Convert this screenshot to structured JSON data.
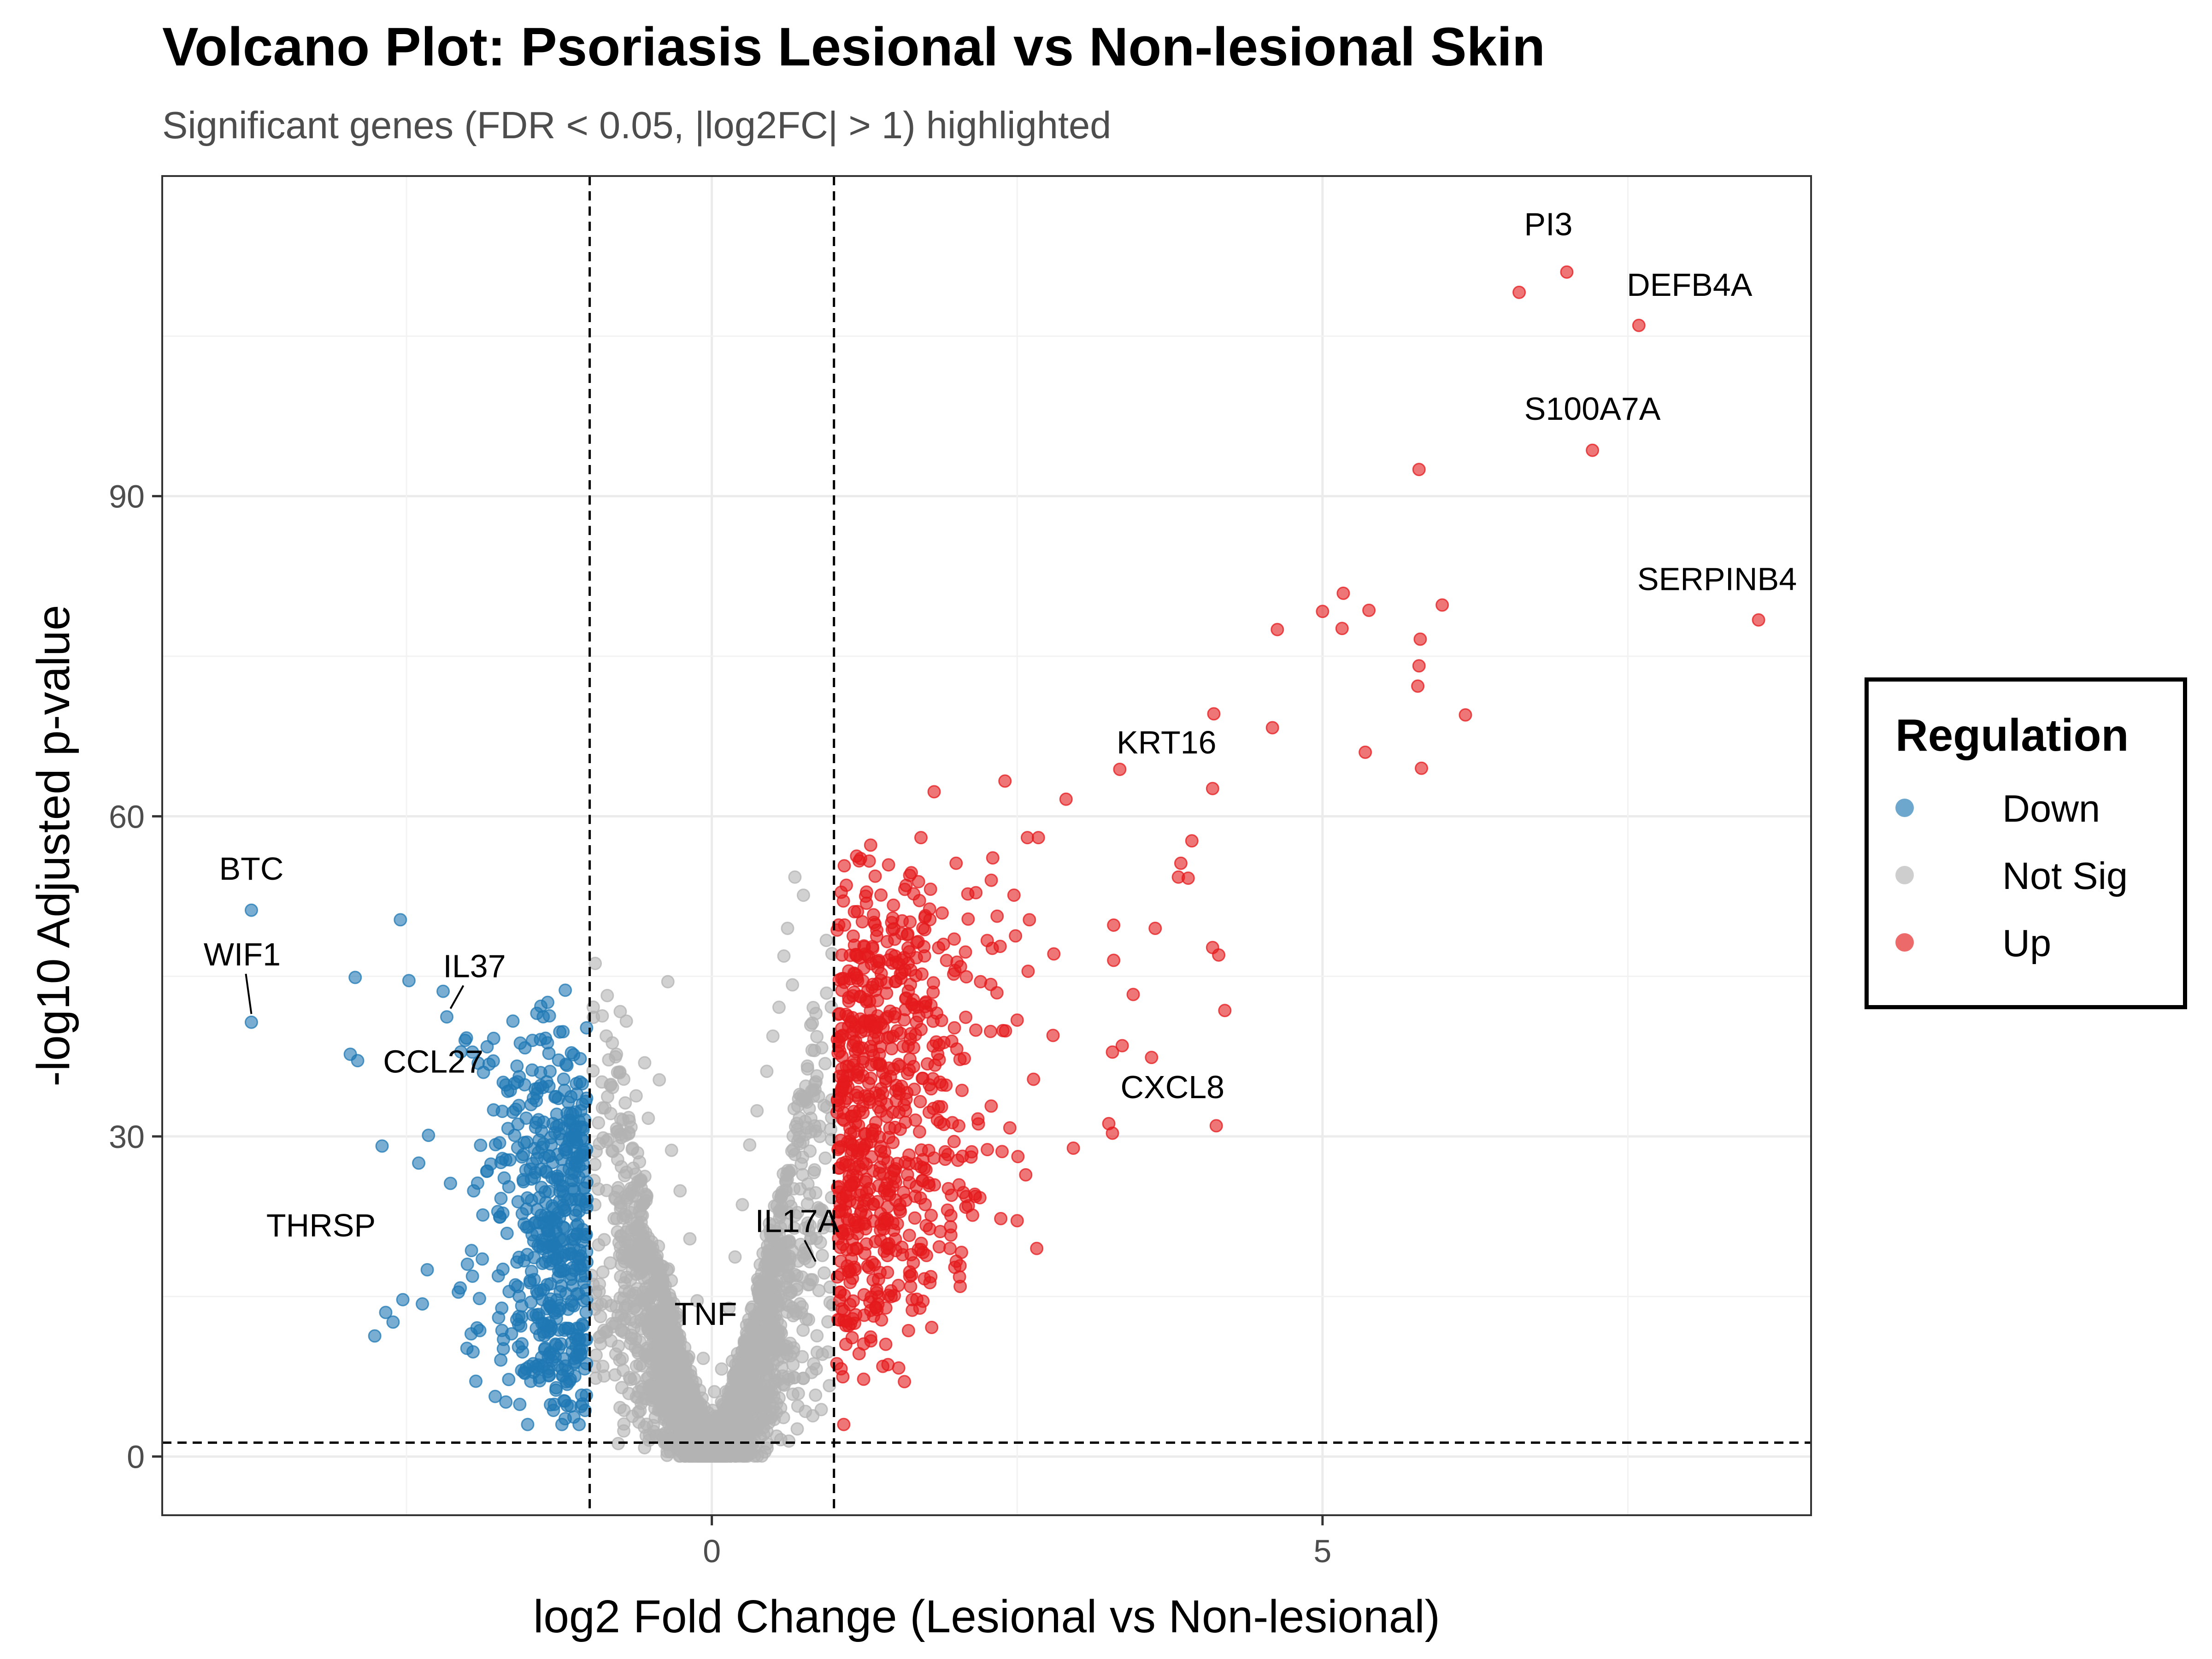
{
  "chart_data": {
    "type": "scatter",
    "title": "Volcano Plot: Psoriasis Lesional vs Non-lesional Skin",
    "subtitle": "Significant genes (FDR < 0.05, |log2FC| > 1) highlighted",
    "xlabel": "log2 Fold Change (Lesional vs Non-lesional)",
    "ylabel": "-log10 Adjusted p-value",
    "xlim": [
      -4.5,
      9.0
    ],
    "ylim": [
      -5.5,
      120
    ],
    "x_ticks": [
      0,
      5
    ],
    "y_ticks": [
      0,
      30,
      60,
      90
    ],
    "thresholds": {
      "log2fc": [
        -1,
        1
      ],
      "neg_log10_fdr": 1.3
    },
    "grid": true,
    "legend": {
      "title": "Regulation",
      "position": "right",
      "entries": [
        {
          "label": "Down",
          "color": "#1f78b4"
        },
        {
          "label": "Not Sig",
          "color": "#b3b3b3"
        },
        {
          "label": "Up",
          "color": "#e41a1c"
        }
      ]
    },
    "series": [
      {
        "name": "Down",
        "color": "#1f78b4",
        "points": [
          [
            -3.77,
            51.2
          ],
          [
            -3.77,
            40.7
          ],
          [
            -2.55,
            50.3
          ],
          [
            -2.48,
            44.6
          ],
          [
            -2.92,
            44.9
          ],
          [
            -2.17,
            41.2
          ],
          [
            -2.2,
            43.6
          ],
          [
            -2.02,
            39.0
          ],
          [
            -1.96,
            37.9
          ],
          [
            -1.87,
            36.0
          ],
          [
            -1.84,
            38.4
          ],
          [
            -2.96,
            37.7
          ],
          [
            -2.9,
            37.1
          ],
          [
            -2.7,
            29.1
          ],
          [
            -2.32,
            30.1
          ],
          [
            -2.4,
            27.5
          ],
          [
            -2.14,
            25.6
          ],
          [
            -1.95,
            24.9
          ],
          [
            -2.33,
            17.5
          ],
          [
            -2.37,
            14.3
          ],
          [
            -2.53,
            14.7
          ],
          [
            -2.67,
            13.5
          ],
          [
            -2.76,
            11.3
          ],
          [
            -2.61,
            12.6
          ],
          [
            -1.9,
            11.8
          ],
          [
            -1.96,
            16.9
          ],
          [
            -2.06,
            15.8
          ],
          [
            -1.72,
            13.9
          ],
          [
            -1.64,
            11.5
          ],
          [
            -1.55,
            9.8
          ],
          [
            -1.46,
            7.9
          ],
          [
            -1.41,
            7.1
          ],
          [
            -1.37,
            8.6
          ],
          [
            -1.2,
            43.7
          ],
          [
            -1.4,
            42.2
          ],
          [
            -1.33,
            41.3
          ],
          [
            -1.53,
            38.3
          ],
          [
            -1.65,
            34.3
          ],
          [
            -1.58,
            32.9
          ],
          [
            -1.3,
            31.2
          ],
          [
            -1.42,
            28.5
          ],
          [
            -1.7,
            26.1
          ],
          [
            -1.26,
            22.8
          ],
          [
            -1.5,
            21.5
          ],
          [
            -1.35,
            19.6
          ],
          [
            -1.22,
            17.4
          ],
          [
            -1.18,
            24.1
          ],
          [
            -1.12,
            27.3
          ],
          [
            -1.08,
            35.1
          ],
          [
            -1.05,
            29.6
          ],
          [
            -1.03,
            15.6
          ],
          [
            -1.06,
            12.4
          ],
          [
            -1.1,
            9.3
          ],
          [
            -1.07,
            4.7
          ]
        ]
      },
      {
        "name": "Up",
        "color": "#e41a1c",
        "points": [
          [
            6.61,
            109.1
          ],
          [
            7.0,
            111.0
          ],
          [
            7.59,
            106.0
          ],
          [
            7.21,
            94.3
          ],
          [
            5.79,
            92.5
          ],
          [
            8.57,
            78.4
          ],
          [
            5.0,
            79.2
          ],
          [
            5.17,
            80.9
          ],
          [
            5.38,
            79.3
          ],
          [
            5.16,
            77.6
          ],
          [
            4.63,
            77.5
          ],
          [
            5.98,
            79.8
          ],
          [
            5.8,
            76.6
          ],
          [
            5.79,
            74.1
          ],
          [
            5.78,
            72.2
          ],
          [
            6.17,
            69.5
          ],
          [
            4.59,
            68.3
          ],
          [
            4.11,
            69.6
          ],
          [
            5.35,
            66.0
          ],
          [
            5.81,
            64.5
          ],
          [
            3.34,
            64.4
          ],
          [
            4.1,
            62.6
          ],
          [
            2.9,
            61.6
          ],
          [
            2.4,
            63.3
          ],
          [
            1.82,
            62.3
          ],
          [
            3.93,
            57.7
          ],
          [
            3.84,
            55.6
          ],
          [
            3.82,
            54.3
          ],
          [
            3.9,
            54.2
          ],
          [
            4.1,
            47.7
          ],
          [
            4.15,
            47.0
          ],
          [
            4.2,
            41.8
          ],
          [
            3.63,
            49.5
          ],
          [
            3.29,
            49.8
          ],
          [
            3.29,
            46.5
          ],
          [
            3.45,
            43.3
          ],
          [
            3.36,
            38.5
          ],
          [
            3.28,
            37.9
          ],
          [
            3.6,
            37.4
          ],
          [
            4.13,
            31.0
          ],
          [
            3.25,
            31.2
          ],
          [
            3.28,
            30.3
          ],
          [
            2.96,
            28.9
          ],
          [
            2.66,
            19.5
          ],
          [
            2.57,
            26.4
          ],
          [
            2.5,
            22.1
          ],
          [
            2.44,
            30.8
          ],
          [
            2.1,
            23.5
          ],
          [
            1.95,
            19.5
          ],
          [
            1.62,
            17.3
          ],
          [
            1.8,
            12.1
          ],
          [
            1.61,
            11.8
          ],
          [
            1.53,
            8.3
          ],
          [
            1.3,
            11.2
          ],
          [
            1.08,
            3.0
          ],
          [
            1.05,
            15.4
          ],
          [
            1.1,
            24.4
          ],
          [
            1.2,
            33.6
          ],
          [
            1.35,
            40.2
          ],
          [
            1.5,
            46.9
          ],
          [
            1.7,
            52.1
          ],
          [
            2.0,
            55.6
          ],
          [
            2.3,
            56.1
          ],
          [
            2.6,
            50.3
          ],
          [
            2.8,
            47.1
          ],
          [
            1.25,
            29.1
          ],
          [
            1.45,
            36.4
          ],
          [
            1.65,
            42.8
          ],
          [
            1.9,
            38.8
          ],
          [
            2.2,
            44.5
          ],
          [
            2.5,
            40.9
          ],
          [
            1.15,
            20.3
          ]
        ]
      },
      {
        "name": "Not Sig",
        "color": "#b3b3b3",
        "points": [
          [
            0.68,
            54.3
          ],
          [
            0.75,
            52.6
          ],
          [
            0.62,
            49.5
          ],
          [
            0.59,
            46.9
          ],
          [
            -0.36,
            44.5
          ],
          [
            0.66,
            44.2
          ],
          [
            0.55,
            42.1
          ],
          [
            -0.75,
            41.7
          ],
          [
            -0.7,
            40.8
          ],
          [
            -0.55,
            36.9
          ],
          [
            -0.43,
            35.3
          ],
          [
            -0.62,
            33.8
          ],
          [
            -0.52,
            31.7
          ],
          [
            -0.33,
            28.7
          ],
          [
            -0.26,
            24.9
          ],
          [
            -0.18,
            20.4
          ],
          [
            -0.12,
            14.6
          ],
          [
            -0.07,
            9.2
          ],
          [
            -0.03,
            4.1
          ],
          [
            0.0,
            0.5
          ],
          [
            0.03,
            3.5
          ],
          [
            0.08,
            8.2
          ],
          [
            0.14,
            13.9
          ],
          [
            0.19,
            18.7
          ],
          [
            0.25,
            23.6
          ],
          [
            0.31,
            29.2
          ],
          [
            0.37,
            32.4
          ],
          [
            0.45,
            36.1
          ],
          [
            0.5,
            39.4
          ],
          [
            -0.9,
            35.1
          ],
          [
            -0.85,
            29.7
          ],
          [
            -0.8,
            22.3
          ],
          [
            -0.95,
            15.4
          ],
          [
            0.9,
            38.3
          ],
          [
            0.85,
            30.5
          ],
          [
            0.8,
            24.6
          ],
          [
            0.92,
            17.2
          ],
          [
            0.95,
            9.8
          ],
          [
            -0.6,
            6.1
          ],
          [
            0.45,
            5.4
          ],
          [
            0.2,
            2.6
          ],
          [
            -0.25,
            2.1
          ]
        ]
      }
    ],
    "annotations": [
      {
        "label": "PI3",
        "x": 7.0,
        "y": 111.0
      },
      {
        "label": "DEFB4A",
        "x": 7.59,
        "y": 106.0
      },
      {
        "label": "S100A7A",
        "x": 7.21,
        "y": 94.3
      },
      {
        "label": "SERPINB4",
        "x": 8.57,
        "y": 78.4
      },
      {
        "label": "KRT16",
        "x": 4.1,
        "y": 62.6
      },
      {
        "label": "CXCL8",
        "x": 4.13,
        "y": 31.0
      },
      {
        "label": "IL17A",
        "x": 0.85,
        "y": 17.5
      },
      {
        "label": "TNF",
        "x": -0.02,
        "y": 15.8
      },
      {
        "label": "BTC",
        "x": -3.77,
        "y": 51.2
      },
      {
        "label": "WIF1",
        "x": -3.77,
        "y": 40.7
      },
      {
        "label": "IL37",
        "x": -2.17,
        "y": 41.2
      },
      {
        "label": "CCL27",
        "x": -2.96,
        "y": 37.7
      },
      {
        "label": "THRSP",
        "x": -3.2,
        "y": 17.6
      }
    ]
  }
}
